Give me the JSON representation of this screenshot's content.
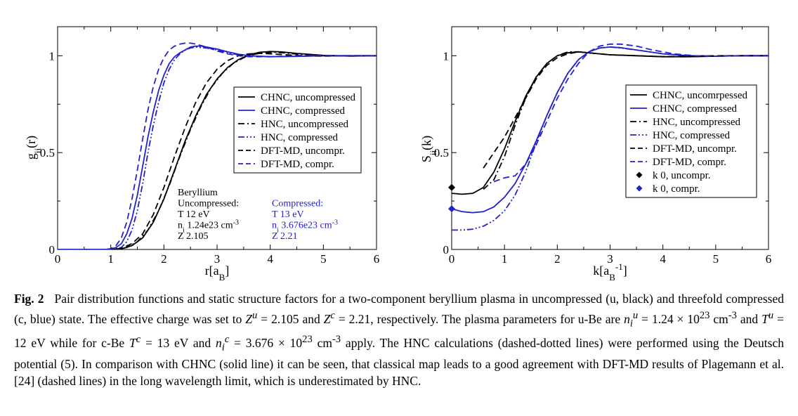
{
  "chart_data": [
    {
      "type": "line",
      "ylabel_main": "g",
      "ylabel_sub": "ii",
      "ylabel_arg": "(r)",
      "xlabel_main": "r[a",
      "xlabel_sub": "B",
      "xlabel_end": "]",
      "xlim": [
        0,
        6
      ],
      "ylim": [
        0,
        1.15
      ],
      "xticks": [
        0,
        1,
        2,
        3,
        4,
        5,
        6
      ],
      "xtick_labels": [
        "0",
        "1",
        "2",
        "3",
        "4",
        "5",
        "6"
      ],
      "yticks": [
        0,
        0.5,
        1
      ],
      "ytick_labels": [
        "0",
        "0.5",
        "1"
      ],
      "legend_position": "center-right",
      "series": [
        {
          "name": "CHNC, uncompressed",
          "color": "#000000",
          "dash": "solid",
          "x": [
            0,
            1.0,
            1.2,
            1.4,
            1.6,
            1.8,
            2.0,
            2.2,
            2.4,
            2.6,
            2.8,
            3.0,
            3.2,
            3.4,
            3.6,
            3.8,
            4.0,
            4.2,
            4.5,
            5.0,
            5.5,
            6.0
          ],
          "y": [
            0,
            0,
            0.003,
            0.02,
            0.06,
            0.14,
            0.26,
            0.41,
            0.56,
            0.69,
            0.8,
            0.88,
            0.94,
            0.98,
            1.005,
            1.018,
            1.022,
            1.02,
            1.012,
            1.002,
            0.998,
            1.0
          ]
        },
        {
          "name": "CHNC, compressed",
          "color": "#2222cc",
          "dash": "solid",
          "x": [
            0,
            0.9,
            1.0,
            1.1,
            1.2,
            1.3,
            1.4,
            1.5,
            1.6,
            1.7,
            1.8,
            1.9,
            2.0,
            2.1,
            2.2,
            2.3,
            2.4,
            2.5,
            2.6,
            2.7,
            2.8,
            3.0,
            3.2,
            3.4,
            3.6,
            4.0,
            4.5,
            5.0,
            6.0
          ],
          "y": [
            0,
            0,
            0.002,
            0.01,
            0.03,
            0.08,
            0.16,
            0.28,
            0.43,
            0.58,
            0.71,
            0.82,
            0.9,
            0.96,
            0.995,
            1.015,
            1.03,
            1.045,
            1.05,
            1.05,
            1.045,
            1.035,
            1.02,
            1.008,
            1.0,
            0.995,
            0.997,
            1.0,
            1.0
          ]
        },
        {
          "name": "HNC, uncompressed",
          "color": "#000000",
          "dash": "dashdot",
          "x": [
            0,
            1.1,
            1.3,
            1.5,
            1.7,
            1.9,
            2.1,
            2.3,
            2.5,
            2.7,
            2.9,
            3.1,
            3.3,
            3.5,
            3.7,
            3.9,
            4.1,
            4.3,
            4.6,
            5.0,
            5.5,
            6.0
          ],
          "y": [
            0,
            0,
            0.01,
            0.04,
            0.1,
            0.2,
            0.33,
            0.48,
            0.62,
            0.74,
            0.84,
            0.91,
            0.96,
            0.99,
            1.008,
            1.015,
            1.018,
            1.014,
            1.006,
            1.0,
            0.999,
            1.0
          ]
        },
        {
          "name": "HNC, compressed",
          "color": "#2222cc",
          "dash": "dashdotdot",
          "x": [
            0,
            1.0,
            1.2,
            1.3,
            1.4,
            1.5,
            1.6,
            1.7,
            1.8,
            1.9,
            2.0,
            2.1,
            2.2,
            2.3,
            2.4,
            2.5,
            2.6,
            2.8,
            3.0,
            3.2,
            3.5,
            4.0,
            5.0,
            6.0
          ],
          "y": [
            0,
            0,
            0.01,
            0.04,
            0.1,
            0.2,
            0.34,
            0.5,
            0.64,
            0.76,
            0.86,
            0.93,
            0.98,
            1.01,
            1.03,
            1.04,
            1.045,
            1.04,
            1.03,
            1.015,
            1.0,
            0.995,
            1.0,
            1.0
          ]
        },
        {
          "name": "DFT-MD, uncompr.",
          "color": "#000000",
          "dash": "dashed",
          "x": [
            0,
            1.05,
            1.2,
            1.4,
            1.6,
            1.8,
            2.0,
            2.2,
            2.4,
            2.6,
            2.8,
            3.0,
            3.2,
            3.4,
            3.6,
            3.8,
            4.0,
            4.3,
            4.6,
            5.0,
            5.5,
            6.0
          ],
          "y": [
            0,
            0,
            0.006,
            0.03,
            0.08,
            0.18,
            0.32,
            0.48,
            0.63,
            0.76,
            0.86,
            0.93,
            0.975,
            1.0,
            1.01,
            1.012,
            1.01,
            1.005,
            1.0,
            0.998,
            1.0,
            1.0
          ]
        },
        {
          "name": "DFT-MD, compr.",
          "color": "#2222cc",
          "dash": "dashed",
          "x": [
            0,
            0.9,
            1.0,
            1.1,
            1.2,
            1.3,
            1.4,
            1.5,
            1.6,
            1.7,
            1.8,
            1.9,
            2.0,
            2.1,
            2.2,
            2.3,
            2.4,
            2.5,
            2.6,
            2.8,
            3.0,
            3.2,
            3.4,
            3.6,
            4.0,
            4.5,
            5.0,
            6.0
          ],
          "y": [
            0,
            0,
            0.004,
            0.02,
            0.06,
            0.14,
            0.26,
            0.41,
            0.57,
            0.72,
            0.84,
            0.93,
            0.99,
            1.03,
            1.05,
            1.06,
            1.065,
            1.065,
            1.06,
            1.045,
            1.025,
            1.01,
            1.0,
            0.995,
            0.995,
            1.0,
            1.0,
            1.0
          ]
        }
      ],
      "annotations": {
        "uncompressed": {
          "title": "Beryllium",
          "subtitle": "Uncompressed:",
          "T": "T   12 eV",
          "n_main": "n",
          "n_sub": "i",
          "n_value": "   1.24e23 cm",
          "n_exp": "-3",
          "Z": "Z   2.105"
        },
        "compressed": {
          "title": "Compressed:",
          "T": "T   13 eV",
          "n_main": "n",
          "n_sub": "i",
          "n_value": "  3.676e23 cm",
          "n_exp": "-3",
          "Z": "Z   2.21",
          "color": "#2222cc"
        }
      }
    },
    {
      "type": "line",
      "ylabel_main": "S",
      "ylabel_sub": "ii",
      "ylabel_arg": "(k)",
      "xlabel_main": "k[a",
      "xlabel_sub": "B",
      "xlabel_sup": "-1",
      "xlabel_end": "]",
      "xlim": [
        0,
        6
      ],
      "ylim": [
        0,
        1.15
      ],
      "xticks": [
        0,
        1,
        2,
        3,
        4,
        5,
        6
      ],
      "xtick_labels": [
        "0",
        "1",
        "2",
        "3",
        "4",
        "5",
        "6"
      ],
      "yticks": [
        0,
        0.5,
        1
      ],
      "ytick_labels": [
        "0",
        "0.5",
        "1"
      ],
      "legend_position": "center-right",
      "series": [
        {
          "name": "CHNC, uncomrpessed",
          "color": "#000000",
          "dash": "solid",
          "x": [
            0.0,
            0.2,
            0.4,
            0.6,
            0.8,
            1.0,
            1.2,
            1.4,
            1.6,
            1.8,
            2.0,
            2.2,
            2.4,
            2.6,
            2.8,
            3.0,
            3.5,
            4.0,
            4.5,
            5.0,
            5.5,
            6.0
          ],
          "y": [
            0.29,
            0.285,
            0.29,
            0.32,
            0.4,
            0.52,
            0.66,
            0.79,
            0.89,
            0.96,
            1.0,
            1.015,
            1.02,
            1.015,
            1.01,
            1.005,
            1.0,
            0.995,
            0.995,
            0.998,
            1.0,
            1.0
          ]
        },
        {
          "name": "CHNC, compressed",
          "color": "#2222cc",
          "dash": "solid",
          "x": [
            0.0,
            0.2,
            0.4,
            0.6,
            0.8,
            1.0,
            1.2,
            1.4,
            1.6,
            1.8,
            2.0,
            2.2,
            2.4,
            2.6,
            2.8,
            3.0,
            3.2,
            3.5,
            4.0,
            4.5,
            5.0,
            5.5,
            6.0
          ],
          "y": [
            0.21,
            0.195,
            0.19,
            0.195,
            0.22,
            0.27,
            0.34,
            0.44,
            0.56,
            0.69,
            0.81,
            0.91,
            0.98,
            1.02,
            1.04,
            1.045,
            1.042,
            1.03,
            1.01,
            1.0,
            0.998,
            1.0,
            1.0
          ]
        },
        {
          "name": "HNC, uncompressed",
          "color": "#000000",
          "dash": "dashdot",
          "x": [
            0.6,
            0.8,
            1.0,
            1.2,
            1.4,
            1.6,
            1.8,
            2.0,
            2.2,
            2.4,
            2.6,
            2.8,
            3.0,
            3.5,
            4.0,
            4.5,
            5.0,
            5.5,
            6.0
          ],
          "y": [
            0.31,
            0.36,
            0.48,
            0.64,
            0.78,
            0.89,
            0.96,
            1.0,
            1.02,
            1.02,
            1.015,
            1.01,
            1.005,
            1.0,
            0.995,
            0.995,
            0.998,
            1.0,
            1.0
          ]
        },
        {
          "name": "HNC, compressed",
          "color": "#2222cc",
          "dash": "dashdotdot",
          "x": [
            0.0,
            0.2,
            0.4,
            0.6,
            0.8,
            1.0,
            1.2,
            1.4,
            1.6,
            1.8,
            2.0,
            2.2,
            2.4,
            2.6,
            2.8,
            3.0,
            3.2,
            3.5,
            4.0,
            4.5,
            5.0,
            5.5,
            6.0
          ],
          "y": [
            0.1,
            0.1,
            0.105,
            0.12,
            0.15,
            0.2,
            0.28,
            0.4,
            0.55,
            0.69,
            0.81,
            0.91,
            0.98,
            1.02,
            1.04,
            1.045,
            1.04,
            1.03,
            1.01,
            1.0,
            0.998,
            1.0,
            1.0
          ]
        },
        {
          "name": "DFT-MD, uncompr.",
          "color": "#000000",
          "dash": "dashed",
          "x": [
            0.6,
            0.8,
            1.0,
            1.2,
            1.4,
            1.6,
            1.8,
            2.0,
            2.2,
            2.4,
            2.6,
            2.8,
            3.0,
            3.5,
            4.0,
            4.5,
            5.0,
            5.5,
            6.0
          ],
          "y": [
            0.42,
            0.5,
            0.58,
            0.68,
            0.78,
            0.88,
            0.95,
            0.99,
            1.01,
            1.02,
            1.015,
            1.01,
            1.005,
            1.0,
            0.995,
            0.998,
            1.0,
            1.0,
            1.0
          ]
        },
        {
          "name": "DFT-MD, compr.",
          "color": "#2222cc",
          "dash": "dashed",
          "x": [
            0.8,
            1.0,
            1.2,
            1.4,
            1.6,
            1.8,
            2.0,
            2.2,
            2.4,
            2.6,
            2.8,
            3.0,
            3.2,
            3.5,
            3.8,
            4.2,
            4.6,
            5.0,
            5.5,
            6.0
          ],
          "y": [
            0.35,
            0.37,
            0.38,
            0.44,
            0.54,
            0.66,
            0.78,
            0.88,
            0.96,
            1.02,
            1.05,
            1.06,
            1.06,
            1.05,
            1.03,
            1.01,
            1.0,
            0.998,
            1.0,
            1.0
          ]
        },
        {
          "name": "k  0, uncompr.",
          "color": "#000000",
          "marker": "diamond",
          "x": [
            0
          ],
          "y": [
            0.32
          ]
        },
        {
          "name": "k  0, compr.",
          "color": "#2222cc",
          "marker": "diamond",
          "x": [
            0
          ],
          "y": [
            0.21
          ]
        }
      ]
    }
  ],
  "caption": {
    "label": "Fig. 2",
    "text_1": "Pair distribution functions and static structure factors for a two-component beryllium plasma in uncompressed (u, black) and threefold compressed (c, blue) state. The effective charge was set to ",
    "zu": "Z",
    "zu_sup": "u",
    "eq1": " = 2.105 and ",
    "zc": "Z",
    "zc_sup": "c",
    "eq2": " = 2.21, respectively. The plasma parameters for u-Be are ",
    "nu": "n",
    "nu_sub": "i",
    "nu_sup": "u",
    "eq3": " = 1.24 × 10",
    "exp23a": "23",
    "unit1": " cm",
    "unit1_exp": "-3",
    "text_2": " and ",
    "tu": "T",
    "tu_sup": "u",
    "eq4": " = 12 eV while for c-Be ",
    "tc": "T",
    "tc_sup": "c",
    "eq5": " = 13 eV and ",
    "nc": "n",
    "nc_sub": "i",
    "nc_sup": "c",
    "eq6": " = 3.676 × 10",
    "exp23b": "23",
    "unit2": " cm",
    "unit2_exp": "-3",
    "text_3": " apply. The HNC calculations (dashed-dotted lines) were performed using the Deutsch potential (5). In comparison with CHNC (solid line) it can be seen, that classical map leads to a good agreement with DFT-MD results of Plagemann et al. [24] (dashed lines) in the long wavelength limit, which is underestimated by HNC."
  }
}
